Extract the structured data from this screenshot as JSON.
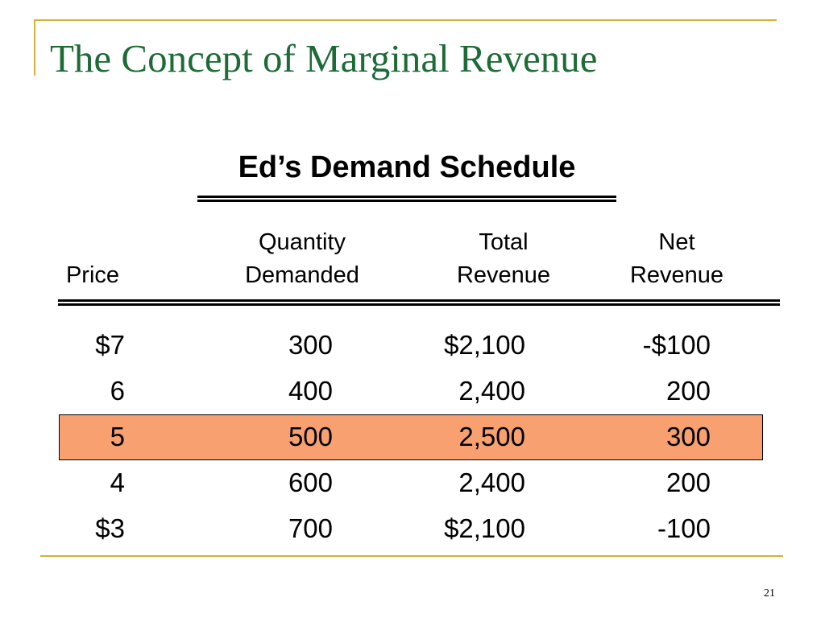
{
  "slide": {
    "title": "The Concept of Marginal Revenue",
    "number": "21",
    "accent_color": "#d4b13a",
    "title_color": "#1d6b36",
    "highlight_color": "#f9a070"
  },
  "table": {
    "title": "Ed’s Demand Schedule",
    "headers": {
      "price": [
        "Price"
      ],
      "quantity": [
        "Quantity",
        "Demanded"
      ],
      "total_revenue": [
        "Total",
        "Revenue"
      ],
      "net_revenue": [
        "Net",
        "Revenue"
      ]
    },
    "rows": [
      {
        "price": "$7",
        "quantity": "300",
        "total_revenue": "$2,100",
        "net_revenue": "-$100"
      },
      {
        "price": "6",
        "quantity": "400",
        "total_revenue": "2,400",
        "net_revenue": "200"
      },
      {
        "price": "5",
        "quantity": "500",
        "total_revenue": "2,500",
        "net_revenue": "300"
      },
      {
        "price": "4",
        "quantity": "600",
        "total_revenue": "2,400",
        "net_revenue": "200"
      },
      {
        "price": "$3",
        "quantity": "700",
        "total_revenue": "$2,100",
        "net_revenue": "-100"
      }
    ],
    "highlighted_row": 2
  }
}
